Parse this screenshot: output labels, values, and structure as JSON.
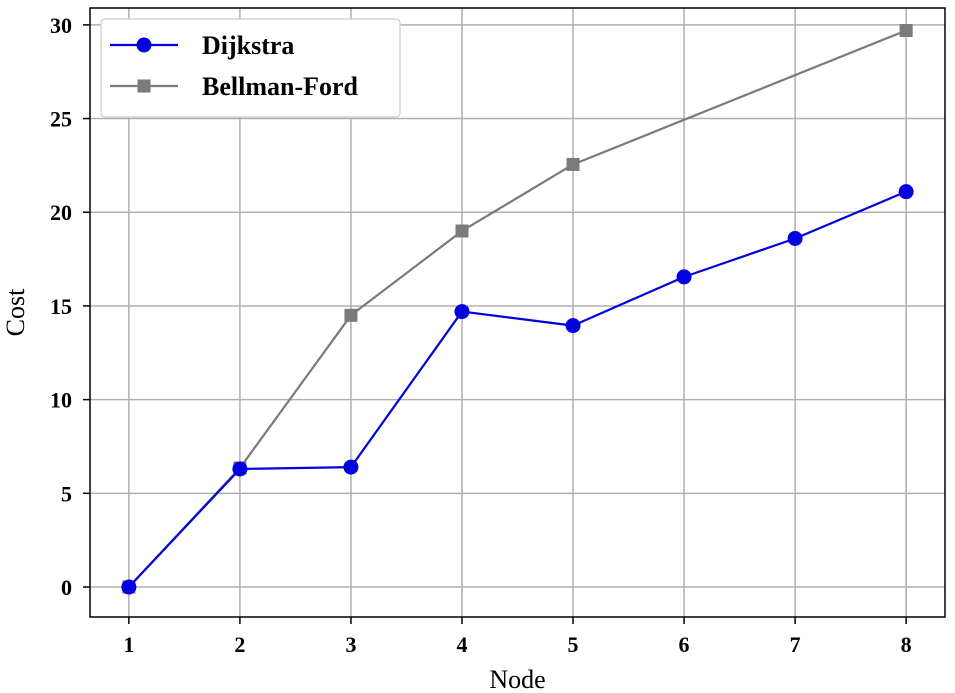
{
  "chart_data": {
    "type": "line",
    "xlabel": "Node",
    "ylabel": "Cost",
    "x": [
      1,
      2,
      3,
      4,
      5,
      6,
      7,
      8
    ],
    "xlim": [
      0.65,
      8.35
    ],
    "ylim": [
      -1.6,
      30.9
    ],
    "xticks": [
      1,
      2,
      3,
      4,
      5,
      6,
      7,
      8
    ],
    "yticks": [
      0,
      5,
      10,
      15,
      20,
      25,
      30
    ],
    "grid": true,
    "legend_position": "top-left",
    "series": [
      {
        "name": "Dijkstra",
        "color": "#0000e0",
        "marker": "circle",
        "values": [
          0,
          6.3,
          6.4,
          14.7,
          13.95,
          16.55,
          18.6,
          21.1
        ]
      },
      {
        "name": "Bellman-Ford",
        "color": "#7a7a7a",
        "marker": "square",
        "values": [
          0,
          6.35,
          14.5,
          19.0,
          22.55,
          null,
          null,
          29.7
        ]
      }
    ]
  }
}
